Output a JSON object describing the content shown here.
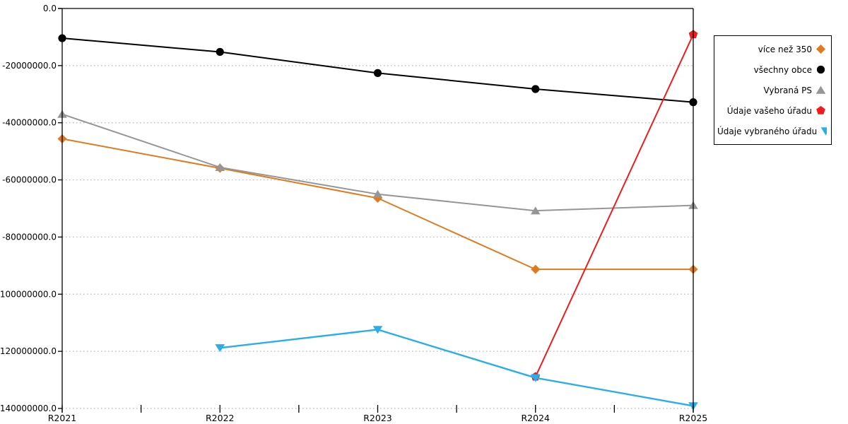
{
  "chart_data": {
    "type": "line",
    "title": "",
    "xlabel": "",
    "ylabel": "",
    "grid": "horizontal-dotted",
    "legend_position": "right",
    "categories": [
      "R2021",
      "R2022",
      "R2023",
      "R2024",
      "R2025"
    ],
    "yaxis": {
      "min": -140000000,
      "max": 0,
      "step": 20000000,
      "tick_labels": [
        "0.0",
        "-20000000.0",
        "-40000000.0",
        "-60000000.0",
        "-80000000.0",
        "-100000000.0",
        "-120000000.0",
        "-140000000.0"
      ]
    },
    "series": [
      {
        "name": "více než 350",
        "marker": "diamond",
        "color": "#DF7B1E",
        "values": [
          -45600000,
          -55900000,
          -66400000,
          -91300000,
          -91300000
        ]
      },
      {
        "name": "všechny obce",
        "marker": "circle",
        "color": "#000000",
        "values": [
          -10400000,
          -15200000,
          -22600000,
          -28200000,
          -32800000
        ]
      },
      {
        "name": "Vybraná PS",
        "marker": "triangle-up",
        "color": "#969696",
        "values": [
          -37000000,
          -55600000,
          -65000000,
          -70800000,
          -68900000
        ]
      },
      {
        "name": "Údaje vašeho úřadu",
        "marker": "pentagon",
        "color": "#EE1C1C",
        "values": [
          null,
          null,
          null,
          -128900000,
          -9100000
        ]
      },
      {
        "name": "Údaje vybraného úřadu",
        "marker": "triangle-down",
        "color": "#29AEEA",
        "values": [
          null,
          -118800000,
          -112400000,
          -129300000,
          -139100000
        ]
      }
    ],
    "colors": {
      "grid": "#b9b9b9",
      "axis": "#000000",
      "background": "#ffffff"
    }
  }
}
